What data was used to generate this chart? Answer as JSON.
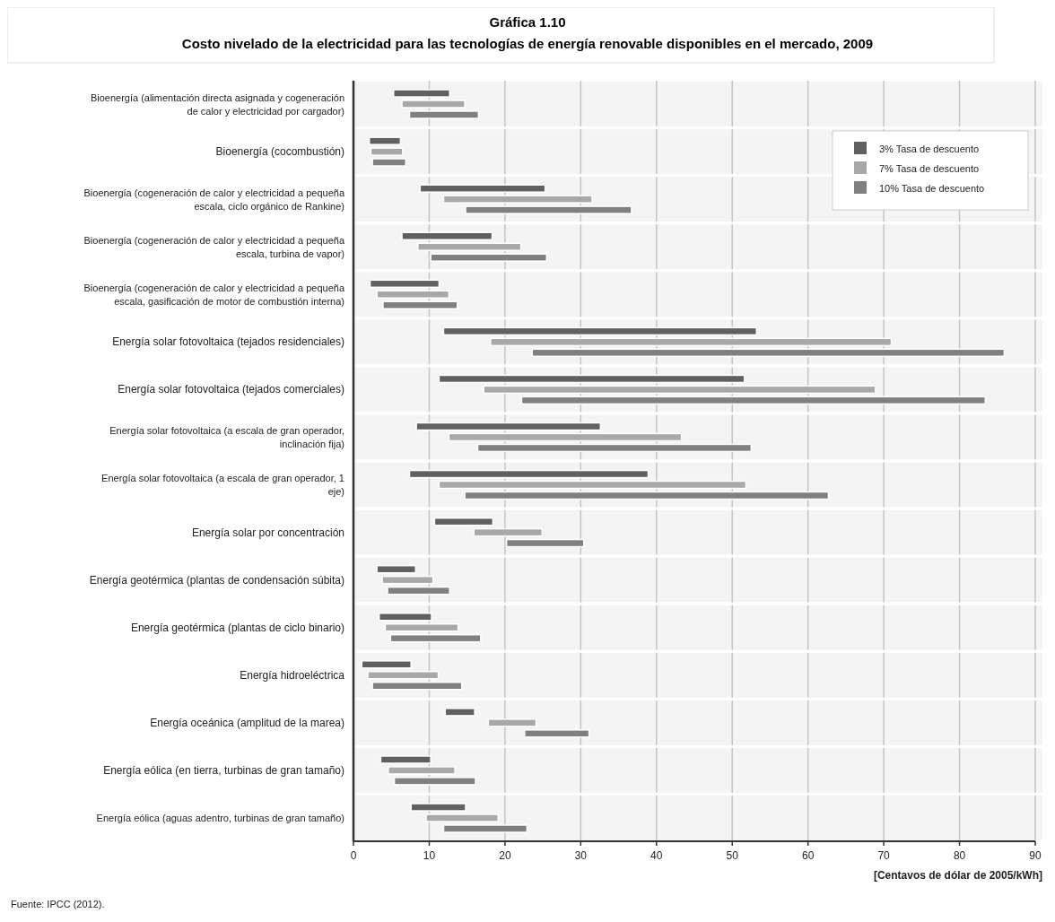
{
  "chart_data": {
    "type": "bar",
    "orientation": "horizontal",
    "title": "Gráfica 1.10",
    "subtitle": "Costo nivelado de la electricidad para las tecnologías de energía renovable disponibles en el mercado, 2009",
    "xlabel": "[Centavos de dólar de 2005/kWh]",
    "annotations": [
      "Fuente: IPCC (2012)."
    ],
    "categories": [
      "Bioenergía (alimentación directa asignada y cogeneración de calor y electricidad por cargador)",
      "Bioenergía (cocombustión)",
      "Bioenergía (cogeneración de calor y electricidad a pequeña escala, ciclo orgánico de Rankine)",
      "Bioenergía (cogeneración de calor y electricidad a pequeña escala, turbina de vapor)",
      "Bioenergía (cogeneración de calor y electricidad a pequeña escala, gasificación de motor de combustión interna)",
      "Energía solar fotovoltaica (tejados residenciales)",
      "Energía solar fotovoltaica (tejados comerciales)",
      "Energía solar fotovoltaica (a escala de gran operador, inclinación fija)",
      "Energía solar fotovoltaica (a escala de gran operador, 1 eje)",
      "Energía solar por concentración",
      "Energía geotérmica (plantas de condensación súbita)",
      "Energía geotérmica (plantas de ciclo binario)",
      "Energía hidroeléctrica",
      "Energía oceánica (amplitud de la marea)",
      "Energía eólica (en tierra, turbinas de gran tamaño)",
      "Energía eólica (aguas adentro, turbinas de gran tamaño)"
    ],
    "series": [
      {
        "name": "3% Tasa de descuento",
        "color": "#606060",
        "base": [
          5.3,
          2.1,
          8.8,
          6.4,
          2.2,
          11.9,
          11.3,
          8.3,
          7.4,
          10.7,
          3.1,
          3.4,
          1.1,
          12.1,
          3.6,
          7.6
        ],
        "values": [
          7.4,
          4.1,
          16.5,
          11.9,
          9.1,
          41.3,
          40.3,
          24.3,
          31.5,
          7.7,
          5.1,
          6.9,
          6.5,
          3.9,
          6.6,
          7.2
        ]
      },
      {
        "name": "7% Tasa de descuento",
        "color": "#a8a8a8",
        "base": [
          6.4,
          2.3,
          11.9,
          8.5,
          3.1,
          18.1,
          17.2,
          12.6,
          11.3,
          15.9,
          3.8,
          4.2,
          1.9,
          17.8,
          4.6,
          9.6
        ],
        "values": [
          8.3,
          4.2,
          19.6,
          13.6,
          9.5,
          52.9,
          51.7,
          30.7,
          40.5,
          9.0,
          6.7,
          9.6,
          9.3,
          6.3,
          8.8,
          9.5
        ]
      },
      {
        "name": "10% Tasa de descuento",
        "color": "#808080",
        "base": [
          7.4,
          2.5,
          14.8,
          10.2,
          3.9,
          23.6,
          22.2,
          16.4,
          14.7,
          20.2,
          4.5,
          4.9,
          2.5,
          22.6,
          5.4,
          11.9
        ],
        "values": [
          9.1,
          4.4,
          21.9,
          15.3,
          9.8,
          62.3,
          61.2,
          36.1,
          48.0,
          10.2,
          8.2,
          11.9,
          11.8,
          8.5,
          10.7,
          11.0
        ]
      }
    ],
    "xlim": [
      0,
      90
    ],
    "xticks": [
      0,
      10,
      20,
      30,
      40,
      50,
      60,
      70,
      80,
      90
    ],
    "grid": "x",
    "legend": "top right"
  }
}
